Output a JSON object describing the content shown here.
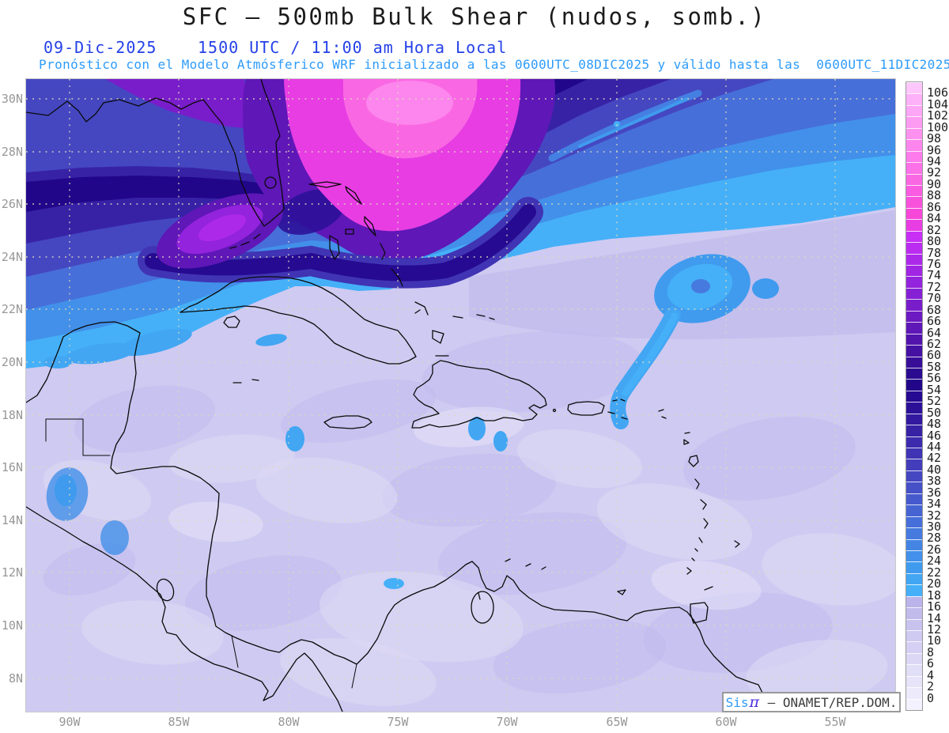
{
  "header": {
    "title": "SFC – 500mb Bulk Shear (nudos, somb.)",
    "date": "09-Dic-2025",
    "time": "1500 UTC / 11:00 am Hora Local",
    "model_line": "Pronóstico con el Modelo Atmósferico WRF inicializado a las 0600UTC_08DIC2025 y válido hasta las  0600UTC_11DIC2025",
    "title_color": "#1b1b1b",
    "date_time_color": "#2440e8",
    "model_line_color": "#2e9bfa"
  },
  "map": {
    "lat_labels": [
      "30N",
      "28N",
      "26N",
      "24N",
      "22N",
      "20N",
      "18N",
      "16N",
      "14N",
      "12N",
      "10N",
      "8N"
    ],
    "lon_labels": [
      "90W",
      "85W",
      "80W",
      "75W",
      "70W",
      "65W",
      "60W",
      "55W"
    ],
    "attribution": {
      "brand": "Sis",
      "pi_symbol": "π",
      "rest": " – ONAMET/REP.DOM."
    }
  },
  "scale": {
    "units": "nudos",
    "levels": [
      0,
      2,
      4,
      6,
      8,
      10,
      12,
      14,
      16,
      18,
      20,
      22,
      24,
      26,
      28,
      30,
      32,
      34,
      36,
      38,
      40,
      42,
      44,
      46,
      48,
      50,
      52,
      54,
      56,
      58,
      60,
      62,
      64,
      66,
      68,
      70,
      72,
      74,
      76,
      78,
      80,
      82,
      84,
      86,
      88,
      90,
      92,
      94,
      96,
      98,
      100,
      102,
      104,
      106
    ],
    "colors": [
      "#F3F1FD",
      "#EDEBFB",
      "#E7E4F9",
      "#E1DEF7",
      "#DBD7F5",
      "#D5D0F3",
      "#CFCAF1",
      "#C8C2EF",
      "#C1BBEC",
      "#BAB4EA",
      "#45B0F8",
      "#42A6F3",
      "#409BEE",
      "#4290E9",
      "#4485E4",
      "#467ADF",
      "#476FD9",
      "#4764D3",
      "#475ACD",
      "#4650C7",
      "#4547C1",
      "#433DBB",
      "#4034B4",
      "#3C2BAD",
      "#3722A6",
      "#32199F",
      "#2C1198",
      "#260A91",
      "#22068A",
      "#2B0B8F",
      "#380E99",
      "#4511A3",
      "#5214AD",
      "#5F17B7",
      "#6C1AC1",
      "#791DCB",
      "#8620D4",
      "#9323DC",
      "#A026E3",
      "#AD29EA",
      "#BA2CF0",
      "#C72FF5",
      "#E73DE3",
      "#F747D9",
      "#F852DC",
      "#F95CE0",
      "#FA67E3",
      "#FB71E7",
      "#FB7CEA",
      "#FC86ED",
      "#FD91F0",
      "#FD9BF3",
      "#FEA6F6",
      "#FEB0F9",
      "#FFC6FB"
    ]
  },
  "chart_data": {
    "type": "heatmap",
    "subtype": "filled-contour weather map",
    "variable": "SFC – 500mb Bulk Shear",
    "units": "knots (nudos, shaded)",
    "model": "WRF",
    "init": "0600UTC_08DIC2025",
    "valid_until": "0600UTC_11DIC2025",
    "lat_range": [
      "8N",
      "30N"
    ],
    "lon_range": [
      "90W",
      "55W"
    ],
    "contour_interval": 2,
    "colorbar_range": [
      0,
      106
    ],
    "features": [
      {
        "region": "Gulf of Mexico / NW corner",
        "approx_value_kt": "38-48"
      },
      {
        "region": "North of Florida and central Bahamas",
        "approx_value_kt": "80-106 (magenta/pink maximum)"
      },
      {
        "region": "SW of Florida wedge",
        "approx_value_kt": "70-80"
      },
      {
        "region": "Dark band from W Gulf across Florida Strait toward NE Atlantic",
        "approx_value_kt": "52-58"
      },
      {
        "region": "Atlantic NE corner",
        "approx_value_kt": "24-34"
      },
      {
        "region": "Bright blue fringe north of Cuba / Bahamas to NE edge",
        "approx_value_kt": "18-26"
      },
      {
        "region": "Blue comma NE of Puerto Rico (~24N 66W)",
        "approx_value_kt": "20-30"
      },
      {
        "region": "Caribbean Sea, Central and South America",
        "approx_value_kt": "0-16 (pale lavender)"
      },
      {
        "region": "Small cyan patches: N Yucatan coast, S of Cuba, Mona Passage, Guatemala, N Colombia coast",
        "approx_value_kt": "18-24"
      }
    ]
  }
}
